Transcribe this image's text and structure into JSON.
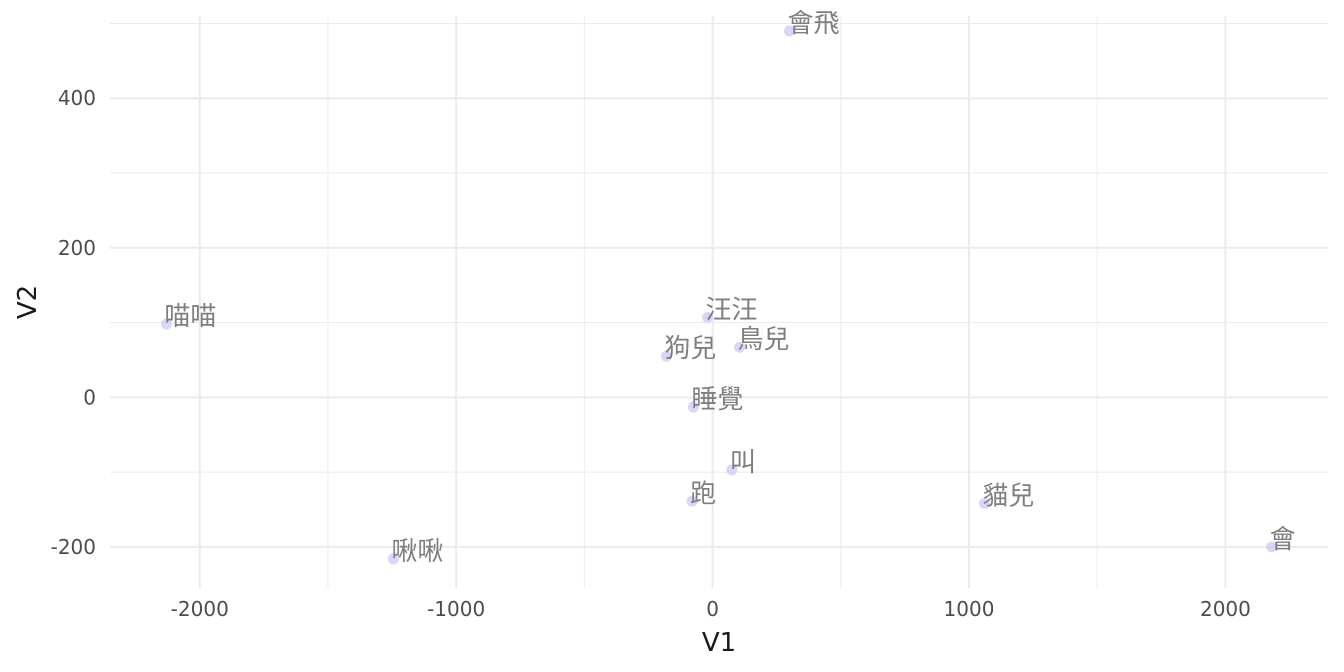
{
  "chart_data": {
    "type": "scatter",
    "xlabel": "V1",
    "ylabel": "V2",
    "xlim": [
      -2350,
      2400
    ],
    "ylim": [
      -255,
      510
    ],
    "x_ticks": [
      -2000,
      -1000,
      0,
      1000,
      2000
    ],
    "x_tick_labels": [
      "-2000",
      "-1000",
      "0",
      "1000",
      "2000"
    ],
    "y_ticks": [
      -200,
      0,
      200,
      400
    ],
    "y_tick_labels": [
      "-200",
      "0",
      "200",
      "400"
    ],
    "grid": true,
    "point_color": "#c9c9f5",
    "label_color": "#7f7f7f",
    "points": [
      {
        "label": "會飛",
        "x": 300,
        "y": 490
      },
      {
        "label": "喵喵",
        "x": -2130,
        "y": 98
      },
      {
        "label": "汪汪",
        "x": -20,
        "y": 107
      },
      {
        "label": "鳥兒",
        "x": 105,
        "y": 67
      },
      {
        "label": "狗兒",
        "x": -180,
        "y": 55
      },
      {
        "label": "睡覺",
        "x": -75,
        "y": -13
      },
      {
        "label": "叫",
        "x": 75,
        "y": -97
      },
      {
        "label": "跑",
        "x": -80,
        "y": -139
      },
      {
        "label": "貓兒",
        "x": 1060,
        "y": -142
      },
      {
        "label": "啾啾",
        "x": -1245,
        "y": -216
      },
      {
        "label": "會",
        "x": 2180,
        "y": -200
      }
    ]
  }
}
